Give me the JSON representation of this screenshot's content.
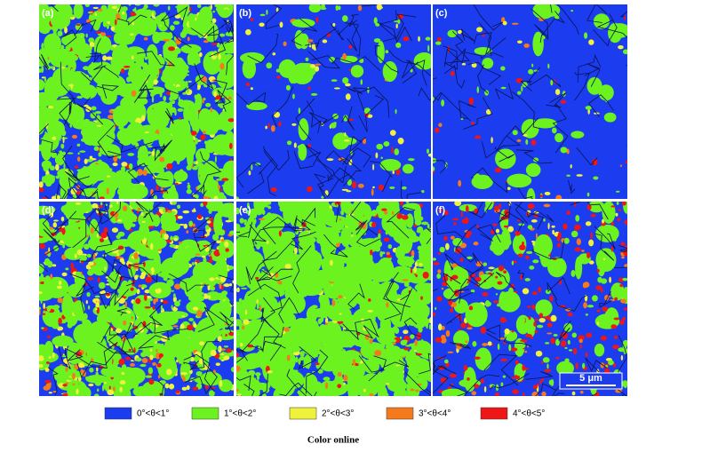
{
  "panels": [
    {
      "label": "(a)"
    },
    {
      "label": "(b)"
    },
    {
      "label": "(c)"
    },
    {
      "label": "(d)"
    },
    {
      "label": "(e)"
    },
    {
      "label": "(f)"
    }
  ],
  "scale_bar": "5 μm",
  "legend": [
    {
      "label": "0°<θ<1°",
      "color": "#1c3cf0"
    },
    {
      "label": "1°<θ<2°",
      "color": "#6cf21e"
    },
    {
      "label": "2°<θ<3°",
      "color": "#eef23a"
    },
    {
      "label": "3°<θ<4°",
      "color": "#f47a1c"
    },
    {
      "label": "4°<θ<5°",
      "color": "#ee1616"
    }
  ],
  "caption": "Color online"
}
